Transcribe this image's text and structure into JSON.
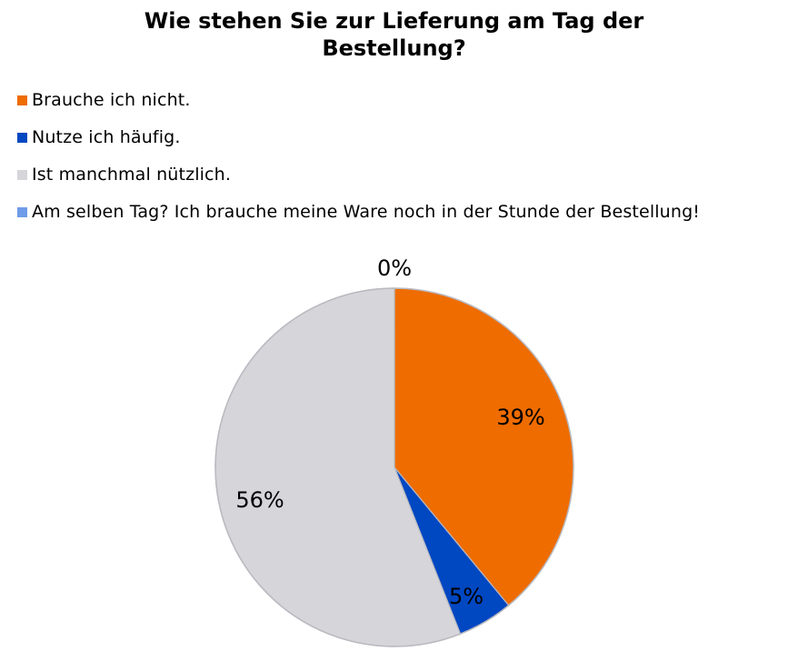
{
  "chart_data": {
    "type": "pie",
    "title_line1": "Wie stehen Sie zur Lieferung am Tag der",
    "title_line2": "Bestellung?",
    "categories": [
      "Brauche ich nicht.",
      "Nutze ich häufig.",
      "Ist manchmal nützlich.",
      "Am selben Tag? Ich brauche meine Ware noch in der Stunde der Bestellung!"
    ],
    "values": [
      39,
      5,
      56,
      0
    ],
    "value_labels": [
      "39%",
      "5%",
      "56%",
      "0%"
    ],
    "colors": [
      "#ee6c00",
      "#0047c2",
      "#d5d5da",
      "#6f9be8"
    ],
    "unit": "%",
    "legend_position": "top-left"
  }
}
